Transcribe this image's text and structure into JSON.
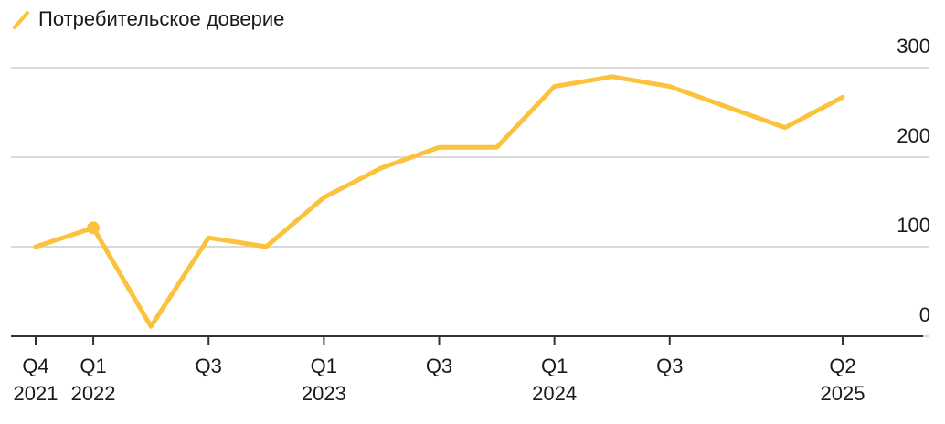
{
  "chart_data": {
    "type": "line",
    "categories": [
      "Q4 2021",
      "Q1 2022",
      null,
      "Q3",
      null,
      "Q1 2023",
      null,
      "Q3",
      null,
      "Q1 2024",
      null,
      "Q3",
      null,
      null,
      "Q2 2025"
    ],
    "series": [
      {
        "name": "Потребительское доверие",
        "color": "#fbc23d",
        "values": [
          100,
          121,
          11,
          110,
          100,
          155,
          188,
          211,
          211,
          279,
          290,
          279,
          256,
          233,
          267
        ]
      }
    ],
    "highlight_index": 1,
    "ylim": [
      0,
      300
    ],
    "yticks": [
      0,
      100,
      200,
      300
    ],
    "grid": true,
    "legend": "top-left"
  }
}
